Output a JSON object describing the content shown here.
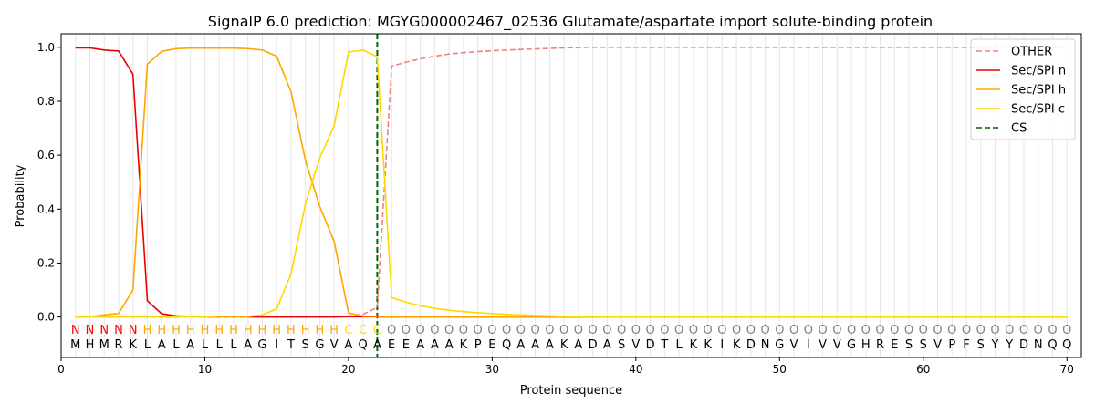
{
  "chart_data": {
    "type": "line",
    "title": "SignalP 6.0 prediction: MGYG000002467_02536 Glutamate/aspartate import solute-binding protein",
    "xlabel": "Protein sequence",
    "ylabel": "Probability",
    "xlim": [
      0,
      71
    ],
    "ylim": [
      -0.15,
      1.05
    ],
    "xticks": [
      0,
      10,
      20,
      30,
      40,
      50,
      60,
      70
    ],
    "yticks": [
      0.0,
      0.2,
      0.4,
      0.6,
      0.8,
      1.0
    ],
    "xtick_labels": [
      "0",
      "10",
      "20",
      "30",
      "40",
      "50",
      "60",
      "70"
    ],
    "ytick_labels": [
      "0.0",
      "0.2",
      "0.4",
      "0.6",
      "0.8",
      "1.0"
    ],
    "legend_position": "top-right",
    "sequence": "MHMRKLALALLLAGITSGVAQAEEAAAKPEQAAAKADASVDTLKKIKDNGVIVVGHRESSVPFSYYDNQQ",
    "region_labels": "NNNNNHHHHHHHHHHHHHHCCCOOOOOOOOOOOOOOOOOOOOOOOOOOOOOOOOOOOOOOOOOOOOOOOO",
    "region_colors": {
      "N": "#ff0000",
      "H": "#ffa500",
      "C": "#ffd700",
      "O": "#808080"
    },
    "cleavage_site": 22,
    "series": [
      {
        "name": "OTHER",
        "color": "#f08080",
        "dash": true,
        "values": [
          0.0,
          0.0,
          0.0,
          0.0,
          0.0,
          0.0,
          0.0,
          0.0,
          0.0,
          0.0,
          0.0,
          0.0,
          0.0,
          0.0,
          0.0,
          0.0,
          0.0,
          0.0,
          0.0,
          0.003,
          0.01,
          0.035,
          0.93,
          0.945,
          0.957,
          0.967,
          0.975,
          0.98,
          0.984,
          0.987,
          0.99,
          0.992,
          0.994,
          0.996,
          0.998,
          0.999,
          1.0,
          1.0,
          1.0,
          1.0,
          1.0,
          1.0,
          1.0,
          1.0,
          1.0,
          1.0,
          1.0,
          1.0,
          1.0,
          1.0,
          1.0,
          1.0,
          1.0,
          1.0,
          1.0,
          1.0,
          1.0,
          1.0,
          1.0,
          1.0,
          1.0,
          1.0,
          1.0,
          1.0,
          1.0,
          1.0,
          1.0,
          1.0,
          1.0,
          1.0
        ]
      },
      {
        "name": "Sec/SPI n",
        "color": "#ee0000",
        "dash": false,
        "values": [
          0.998,
          0.998,
          0.99,
          0.986,
          0.9,
          0.06,
          0.012,
          0.004,
          0.002,
          0.001,
          0.001,
          0.001,
          0.001,
          0.0,
          0.0,
          0.0,
          0.0,
          0.0,
          0.0,
          0.001,
          0.001,
          0.001,
          0.0,
          0.0,
          0.0,
          0.0,
          0.0,
          0.0,
          0.0,
          0.0,
          0.0,
          0.0,
          0.0,
          0.0,
          0.0,
          0.0,
          0.0,
          0.0,
          0.0,
          0.0,
          0.0,
          0.0,
          0.0,
          0.0,
          0.0,
          0.0,
          0.0,
          0.0,
          0.0,
          0.0,
          0.0,
          0.0,
          0.0,
          0.0,
          0.0,
          0.0,
          0.0,
          0.0,
          0.0,
          0.0,
          0.0,
          0.0,
          0.0,
          0.0,
          0.0,
          0.0,
          0.0,
          0.0,
          0.0,
          0.0
        ]
      },
      {
        "name": "Sec/SPI h",
        "color": "#ffa500",
        "dash": false,
        "values": [
          0.001,
          0.001,
          0.008,
          0.013,
          0.1,
          0.937,
          0.985,
          0.995,
          0.997,
          0.997,
          0.997,
          0.997,
          0.995,
          0.99,
          0.967,
          0.835,
          0.58,
          0.41,
          0.28,
          0.015,
          0.003,
          0.002,
          0.001,
          0.0,
          0.0,
          0.0,
          0.0,
          0.0,
          0.0,
          0.0,
          0.0,
          0.0,
          0.0,
          0.0,
          0.0,
          0.0,
          0.0,
          0.0,
          0.0,
          0.0,
          0.0,
          0.0,
          0.0,
          0.0,
          0.0,
          0.0,
          0.0,
          0.0,
          0.0,
          0.0,
          0.0,
          0.0,
          0.0,
          0.0,
          0.0,
          0.0,
          0.0,
          0.0,
          0.0,
          0.0,
          0.0,
          0.0,
          0.0,
          0.0,
          0.0,
          0.0,
          0.0,
          0.0,
          0.0,
          0.0
        ]
      },
      {
        "name": "Sec/SPI c",
        "color": "#ffd700",
        "dash": false,
        "values": [
          0.0,
          0.0,
          0.0,
          0.0,
          0.0,
          0.0,
          0.001,
          0.001,
          0.001,
          0.001,
          0.002,
          0.002,
          0.002,
          0.008,
          0.03,
          0.16,
          0.42,
          0.59,
          0.71,
          0.982,
          0.99,
          0.965,
          0.072,
          0.055,
          0.042,
          0.032,
          0.025,
          0.02,
          0.016,
          0.013,
          0.01,
          0.008,
          0.006,
          0.004,
          0.002,
          0.001,
          0.001,
          0.0,
          0.0,
          0.0,
          0.0,
          0.0,
          0.0,
          0.0,
          0.0,
          0.0,
          0.0,
          0.0,
          0.0,
          0.0,
          0.0,
          0.0,
          0.0,
          0.0,
          0.0,
          0.0,
          0.0,
          0.0,
          0.0,
          0.0,
          0.0,
          0.0,
          0.0,
          0.0,
          0.0,
          0.0,
          0.0,
          0.0,
          0.0,
          0.0
        ]
      },
      {
        "name": "CS",
        "color": "#006400",
        "dash": true,
        "values": []
      }
    ]
  }
}
